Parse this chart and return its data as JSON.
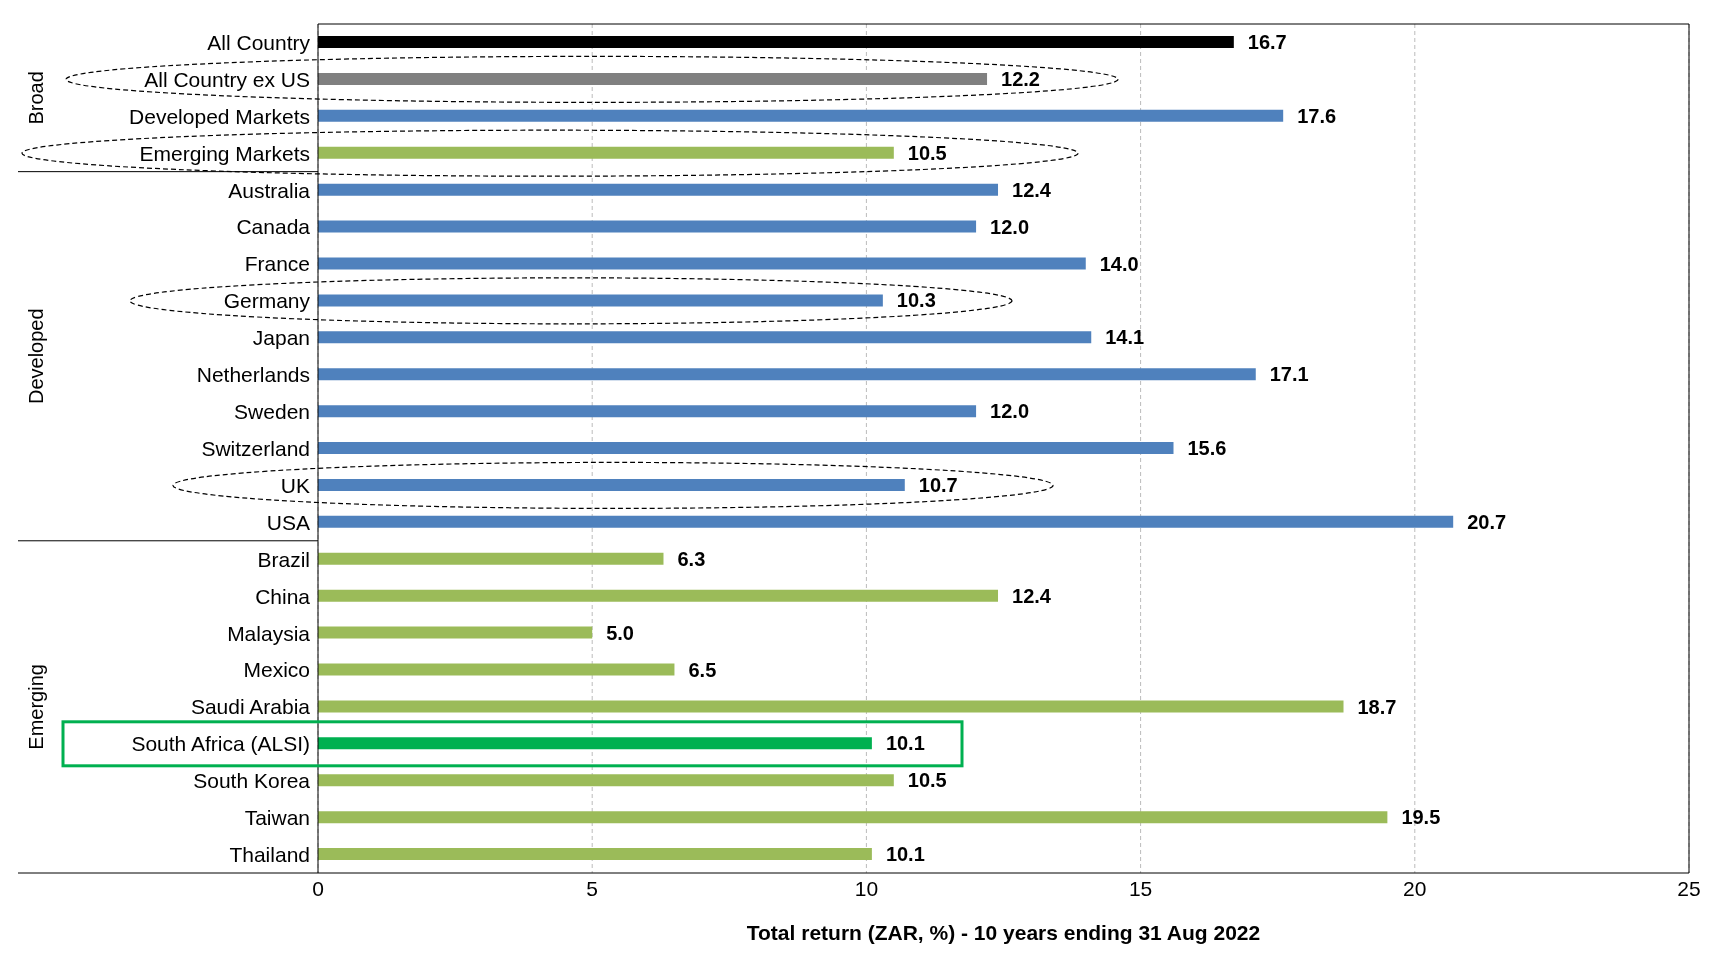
{
  "chart_data": {
    "type": "bar",
    "orientation": "horizontal",
    "xlabel": "Total return (ZAR, %) - 10 years ending 31 Aug  2022",
    "categories": [
      "All Country",
      "All Country ex US",
      "Developed Markets",
      "Emerging Markets",
      "Australia",
      "Canada",
      "France",
      "Germany",
      "Japan",
      "Netherlands",
      "Sweden",
      "Switzerland",
      "UK",
      "USA",
      "Brazil",
      "China",
      "Malaysia",
      "Mexico",
      "Saudi Arabia",
      "South Africa (ALSI)",
      "South Korea",
      "Taiwan",
      "Thailand"
    ],
    "values": [
      16.7,
      12.2,
      17.6,
      10.5,
      12.4,
      12.0,
      14.0,
      10.3,
      14.1,
      17.1,
      12.0,
      15.6,
      10.7,
      20.7,
      6.3,
      12.4,
      5.0,
      6.5,
      18.7,
      10.1,
      10.5,
      19.5,
      10.1
    ],
    "value_labels": [
      "16.7",
      "12.2",
      "17.6",
      "10.5",
      "12.4",
      "12.0",
      "14.0",
      "10.3",
      "14.1",
      "17.1",
      "12.0",
      "15.6",
      "10.7",
      "20.7",
      "6.3",
      "12.4",
      "5.0",
      "6.5",
      "18.7",
      "10.1",
      "10.5",
      "19.5",
      "10.1"
    ],
    "colors": [
      "#000000",
      "#808080",
      "#4f81bd",
      "#9bbb59",
      "#4f81bd",
      "#4f81bd",
      "#4f81bd",
      "#4f81bd",
      "#4f81bd",
      "#4f81bd",
      "#4f81bd",
      "#4f81bd",
      "#4f81bd",
      "#4f81bd",
      "#9bbb59",
      "#9bbb59",
      "#9bbb59",
      "#9bbb59",
      "#9bbb59",
      "#00b050",
      "#9bbb59",
      "#9bbb59",
      "#9bbb59"
    ],
    "xlim": [
      0,
      25
    ],
    "xticks": [
      0,
      5,
      10,
      15,
      20,
      25
    ],
    "grid": "x",
    "legend": false,
    "annotations": [
      "Broad",
      "Developed",
      "Emerging"
    ]
  }
}
